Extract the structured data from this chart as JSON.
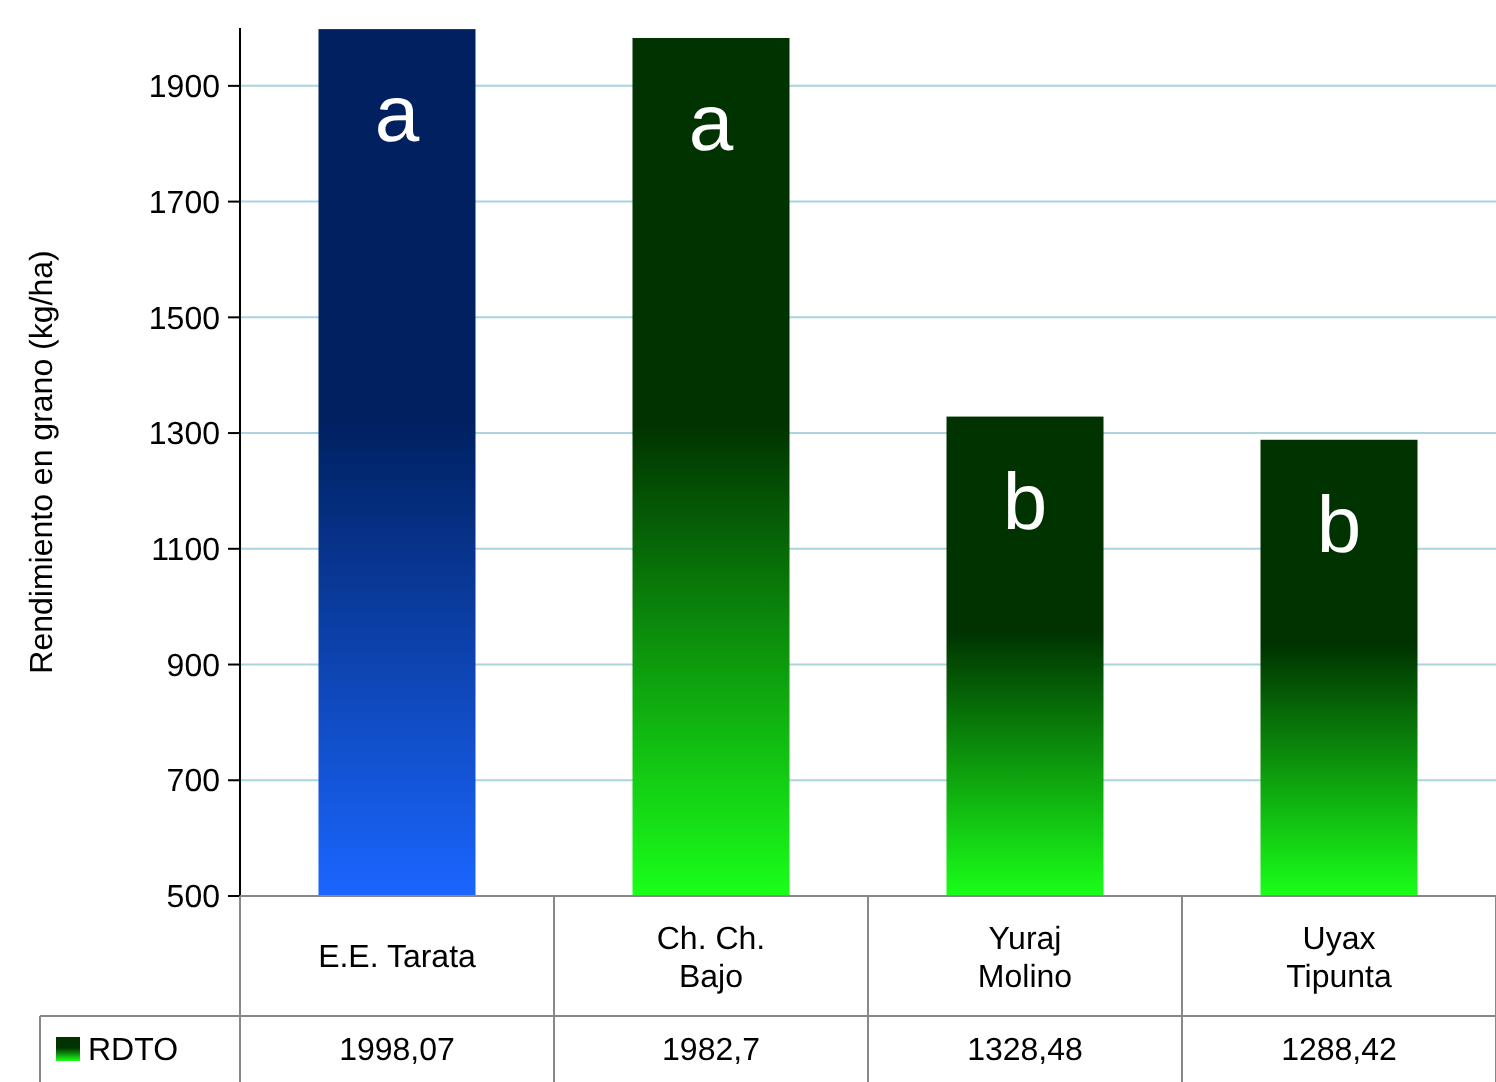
{
  "chart_data": {
    "type": "bar",
    "ylabel": "Rendimiento en grano (kg/ha)",
    "categories": [
      "E.E. Tarata",
      "Ch. Ch.\nBajo",
      "Yuraj\nMolino",
      "Uyax\nTipunta"
    ],
    "series": [
      {
        "name": "RDTO",
        "colors": [
          "#002060",
          "#003300",
          "#003300",
          "#003300"
        ],
        "values": [
          1998.07,
          1982.7,
          1328.48,
          1288.42
        ],
        "value_labels": [
          "1998,07",
          "1982,7",
          "1328,48",
          "1288,42"
        ]
      }
    ],
    "ylim": [
      500,
      2000
    ],
    "yticks": [
      500,
      700,
      900,
      1100,
      1300,
      1500,
      1700,
      1900
    ],
    "grid": "y",
    "legend": "bottom left",
    "annotations": [
      {
        "text": "a",
        "x": "E.E. Tarata",
        "y": 1998.07
      },
      {
        "text": "a",
        "x": "Ch. Ch.\nBajo",
        "y": 1982.7
      },
      {
        "text": "b",
        "x": "Yuraj\nMolino",
        "y": 1328.48
      },
      {
        "text": "b",
        "x": "Uyax\nTipunta",
        "y": 1288.42
      }
    ]
  }
}
